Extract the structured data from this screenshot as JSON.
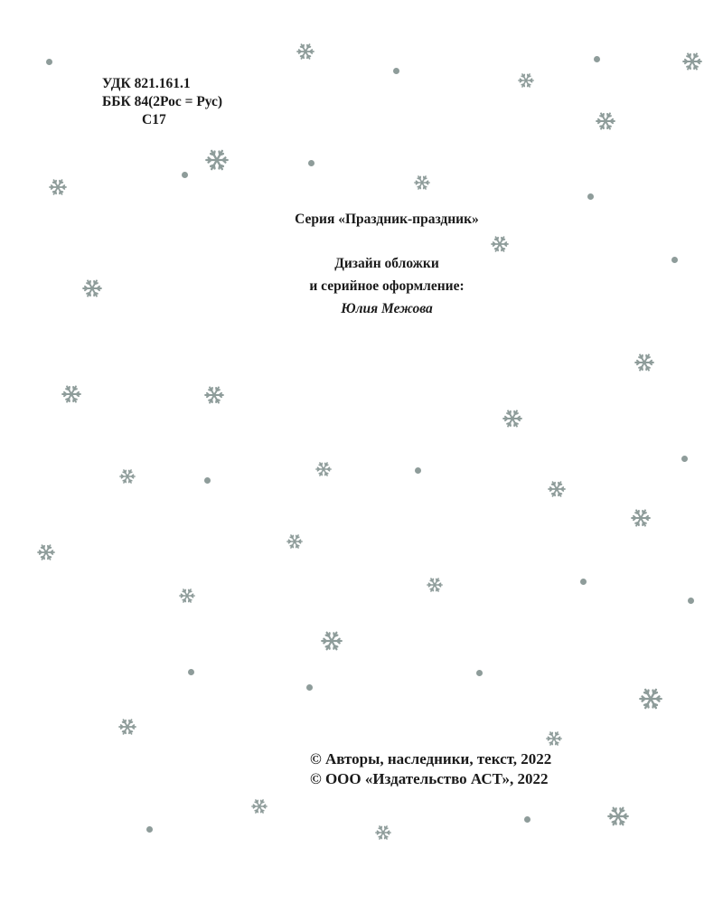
{
  "catalog": {
    "udk": "УДК 821.161.1",
    "bbk": "ББК 84(2Рос = Рус)",
    "author_mark": "С17"
  },
  "series": "Серия «Праздник-праздник»",
  "design": {
    "line1": "Дизайн обложки",
    "line2": "и серийное оформление:",
    "designer": "Юлия Межова"
  },
  "copyright": {
    "line1": "© Авторы, наследники, текст, 2022",
    "line2": "© ООО «Издательство АСТ», 2022"
  },
  "decoration": {
    "snowflake_icon": "snowflake-icon",
    "color": "#8e9c9a"
  }
}
